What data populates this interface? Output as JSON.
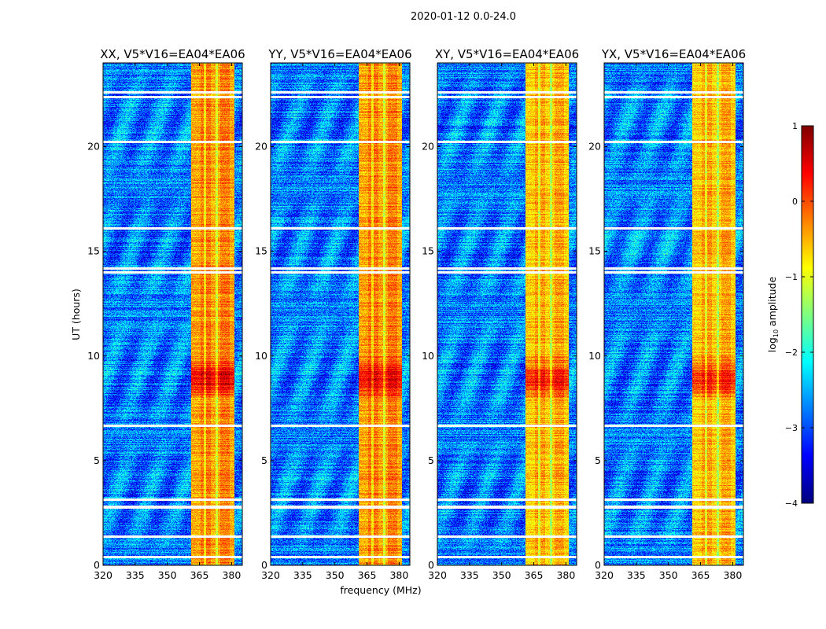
{
  "chart_data": {
    "type": "heatmap",
    "title": "2020-01-12 0.0-24.0",
    "xlabel": "frequency (MHz)",
    "ylabel": "UT (hours)",
    "xlim": [
      320,
      385
    ],
    "ylim": [
      0,
      24
    ],
    "xticks": [
      320,
      335,
      350,
      365,
      380
    ],
    "yticks": [
      0,
      5,
      10,
      15,
      20
    ],
    "panels": [
      {
        "title": "XX, V5*V16=EA04*EA06"
      },
      {
        "title": "YY, V5*V16=EA04*EA06"
      },
      {
        "title": "XY, V5*V16=EA04*EA06"
      },
      {
        "title": "YX, V5*V16=EA04*EA06"
      }
    ],
    "rfi_band_mhz": [
      361,
      381
    ],
    "strong_rfi_hours": [
      8,
      10
    ],
    "flagged_hours": [
      0.4,
      1.4,
      2.8,
      3.15,
      6.7,
      14.0,
      14.2,
      16.1,
      20.25,
      22.4,
      22.6
    ],
    "colorbar": {
      "label": "log10 amplitude",
      "label_main": "log",
      "label_sub": "10",
      "label_rest": " amplitude",
      "range": [
        -4,
        1
      ],
      "ticks": [
        "1",
        "0",
        "−1",
        "−2",
        "−3",
        "−4"
      ],
      "tick_values": [
        1,
        0,
        -1,
        -2,
        -3,
        -4
      ],
      "colormap": "jet"
    }
  }
}
